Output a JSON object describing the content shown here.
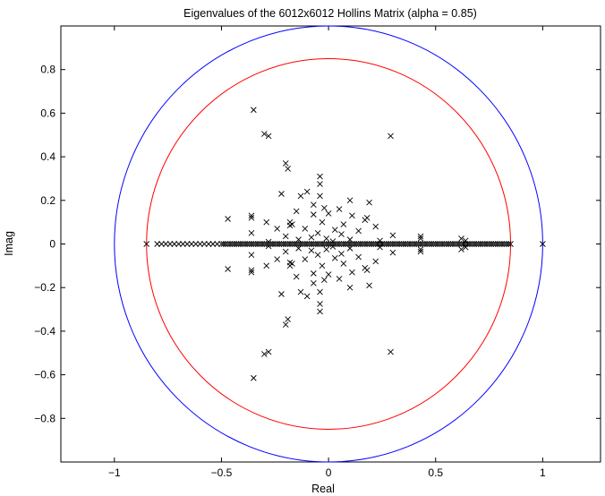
{
  "chart_data": {
    "type": "scatter",
    "title": "Eigenvalues of the 6012x6012 Hollins Matrix (alpha = 0.85)",
    "xlabel": "Real",
    "ylabel": "Imag",
    "xlim": [
      -1.25,
      1.27
    ],
    "ylim": [
      -1.0,
      1.0
    ],
    "xticks": [
      -1,
      -0.5,
      0,
      0.5,
      1
    ],
    "xtick_labels": [
      "−1",
      "−0.5",
      "0",
      "0.5",
      "1"
    ],
    "yticks": [
      -0.8,
      -0.6,
      -0.4,
      -0.2,
      0,
      0.2,
      0.4,
      0.6,
      0.8
    ],
    "ytick_labels": [
      "−0.8",
      "−0.6",
      "−0.4",
      "−0.2",
      "0",
      "0.2",
      "0.4",
      "0.6",
      "0.8"
    ],
    "grid": false,
    "marker": "x",
    "marker_color": "#000000",
    "circles": [
      {
        "radius": 1.0,
        "color": "#0000ff"
      },
      {
        "radius": 0.85,
        "color": "#ff0000"
      }
    ],
    "real_axis_eigenvalues_x": [
      -0.85,
      -0.8,
      -0.78,
      -0.76,
      -0.74,
      -0.72,
      -0.7,
      -0.68,
      -0.66,
      -0.64,
      -0.62,
      -0.6,
      -0.58,
      -0.56,
      -0.54,
      -0.52,
      -0.5,
      -0.49,
      -0.48,
      -0.47,
      -0.46,
      -0.45,
      -0.44,
      -0.43,
      -0.42,
      -0.41,
      -0.4,
      -0.39,
      -0.38,
      -0.37,
      -0.36,
      -0.35,
      -0.34,
      -0.33,
      -0.32,
      -0.31,
      -0.3,
      -0.29,
      -0.28,
      -0.27,
      -0.26,
      -0.25,
      -0.24,
      -0.23,
      -0.22,
      -0.21,
      -0.2,
      -0.19,
      -0.18,
      -0.17,
      -0.16,
      -0.15,
      -0.14,
      -0.13,
      -0.12,
      -0.11,
      -0.1,
      -0.09,
      -0.08,
      -0.07,
      -0.06,
      -0.05,
      -0.04,
      -0.03,
      -0.02,
      -0.01,
      0.0,
      0.01,
      0.02,
      0.03,
      0.04,
      0.05,
      0.06,
      0.07,
      0.08,
      0.09,
      0.1,
      0.11,
      0.12,
      0.13,
      0.14,
      0.15,
      0.16,
      0.17,
      0.18,
      0.19,
      0.2,
      0.21,
      0.22,
      0.23,
      0.24,
      0.25,
      0.26,
      0.27,
      0.28,
      0.29,
      0.3,
      0.31,
      0.32,
      0.33,
      0.34,
      0.35,
      0.36,
      0.37,
      0.38,
      0.39,
      0.4,
      0.41,
      0.42,
      0.43,
      0.44,
      0.45,
      0.46,
      0.47,
      0.48,
      0.49,
      0.5,
      0.51,
      0.52,
      0.53,
      0.54,
      0.55,
      0.56,
      0.57,
      0.58,
      0.59,
      0.6,
      0.61,
      0.62,
      0.63,
      0.64,
      0.65,
      0.66,
      0.67,
      0.68,
      0.69,
      0.7,
      0.71,
      0.72,
      0.73,
      0.74,
      0.75,
      0.76,
      0.77,
      0.78,
      0.79,
      0.8,
      0.81,
      0.82,
      0.83,
      0.84,
      0.85,
      1.0
    ],
    "complex_eigenvalues": [
      {
        "x": -0.35,
        "y": 0.615
      },
      {
        "x": -0.35,
        "y": -0.615
      },
      {
        "x": -0.3,
        "y": 0.505
      },
      {
        "x": -0.3,
        "y": -0.505
      },
      {
        "x": -0.28,
        "y": 0.495
      },
      {
        "x": -0.28,
        "y": -0.495
      },
      {
        "x": 0.29,
        "y": 0.495
      },
      {
        "x": 0.29,
        "y": -0.495
      },
      {
        "x": -0.2,
        "y": 0.37
      },
      {
        "x": -0.2,
        "y": -0.37
      },
      {
        "x": -0.19,
        "y": 0.345
      },
      {
        "x": -0.19,
        "y": -0.345
      },
      {
        "x": -0.04,
        "y": 0.31
      },
      {
        "x": -0.04,
        "y": -0.31
      },
      {
        "x": -0.04,
        "y": 0.275
      },
      {
        "x": -0.04,
        "y": -0.275
      },
      {
        "x": -0.1,
        "y": 0.24
      },
      {
        "x": -0.1,
        "y": -0.24
      },
      {
        "x": -0.22,
        "y": 0.23
      },
      {
        "x": -0.22,
        "y": -0.23
      },
      {
        "x": -0.13,
        "y": 0.22
      },
      {
        "x": -0.13,
        "y": -0.22
      },
      {
        "x": -0.04,
        "y": 0.22
      },
      {
        "x": -0.04,
        "y": -0.22
      },
      {
        "x": 0.1,
        "y": 0.2
      },
      {
        "x": 0.1,
        "y": -0.2
      },
      {
        "x": 0.19,
        "y": 0.19
      },
      {
        "x": 0.19,
        "y": -0.19
      },
      {
        "x": -0.07,
        "y": 0.18
      },
      {
        "x": -0.07,
        "y": -0.18
      },
      {
        "x": -0.02,
        "y": 0.165
      },
      {
        "x": -0.02,
        "y": -0.165
      },
      {
        "x": 0.05,
        "y": 0.16
      },
      {
        "x": 0.05,
        "y": -0.16
      },
      {
        "x": -0.15,
        "y": 0.15
      },
      {
        "x": -0.15,
        "y": -0.15
      },
      {
        "x": 0.0,
        "y": 0.14
      },
      {
        "x": 0.0,
        "y": -0.14
      },
      {
        "x": -0.07,
        "y": 0.135
      },
      {
        "x": -0.07,
        "y": -0.135
      },
      {
        "x": 0.11,
        "y": 0.13
      },
      {
        "x": 0.11,
        "y": -0.13
      },
      {
        "x": 0.18,
        "y": 0.12
      },
      {
        "x": 0.18,
        "y": -0.12
      },
      {
        "x": 0.17,
        "y": 0.11
      },
      {
        "x": 0.17,
        "y": -0.11
      },
      {
        "x": -0.36,
        "y": 0.12
      },
      {
        "x": -0.36,
        "y": -0.12
      },
      {
        "x": -0.47,
        "y": 0.115
      },
      {
        "x": -0.47,
        "y": -0.115
      },
      {
        "x": -0.36,
        "y": 0.13
      },
      {
        "x": -0.36,
        "y": -0.13
      },
      {
        "x": -0.29,
        "y": 0.1
      },
      {
        "x": -0.29,
        "y": -0.1
      },
      {
        "x": -0.18,
        "y": 0.1
      },
      {
        "x": -0.18,
        "y": -0.1
      },
      {
        "x": -0.17,
        "y": 0.09
      },
      {
        "x": -0.17,
        "y": -0.09
      },
      {
        "x": -0.18,
        "y": 0.085
      },
      {
        "x": -0.18,
        "y": -0.085
      },
      {
        "x": -0.03,
        "y": 0.1
      },
      {
        "x": -0.03,
        "y": -0.1
      },
      {
        "x": 0.07,
        "y": 0.09
      },
      {
        "x": 0.07,
        "y": -0.09
      },
      {
        "x": 0.22,
        "y": 0.08
      },
      {
        "x": 0.22,
        "y": -0.08
      },
      {
        "x": -0.24,
        "y": 0.07
      },
      {
        "x": -0.24,
        "y": -0.07
      },
      {
        "x": -0.11,
        "y": 0.07
      },
      {
        "x": -0.11,
        "y": -0.07
      },
      {
        "x": 0.03,
        "y": 0.065
      },
      {
        "x": 0.03,
        "y": -0.065
      },
      {
        "x": 0.14,
        "y": 0.06
      },
      {
        "x": 0.14,
        "y": -0.06
      },
      {
        "x": -0.36,
        "y": 0.05
      },
      {
        "x": -0.36,
        "y": -0.05
      },
      {
        "x": -0.05,
        "y": 0.05
      },
      {
        "x": -0.05,
        "y": -0.05
      },
      {
        "x": 0.06,
        "y": 0.045
      },
      {
        "x": 0.06,
        "y": -0.045
      },
      {
        "x": 0.3,
        "y": 0.04
      },
      {
        "x": 0.3,
        "y": -0.04
      },
      {
        "x": -0.2,
        "y": 0.035
      },
      {
        "x": -0.2,
        "y": -0.035
      },
      {
        "x": -0.08,
        "y": 0.03
      },
      {
        "x": -0.08,
        "y": -0.03
      },
      {
        "x": 0.43,
        "y": 0.035
      },
      {
        "x": 0.43,
        "y": -0.035
      },
      {
        "x": 0.43,
        "y": 0.025
      },
      {
        "x": 0.43,
        "y": -0.025
      },
      {
        "x": 0.62,
        "y": 0.025
      },
      {
        "x": 0.62,
        "y": -0.025
      },
      {
        "x": 0.64,
        "y": 0.015
      },
      {
        "x": 0.64,
        "y": -0.015
      },
      {
        "x": -0.01,
        "y": 0.025
      },
      {
        "x": -0.01,
        "y": -0.025
      },
      {
        "x": 0.1,
        "y": 0.02
      },
      {
        "x": 0.1,
        "y": -0.02
      },
      {
        "x": -0.14,
        "y": 0.02
      },
      {
        "x": -0.14,
        "y": -0.02
      },
      {
        "x": 0.24,
        "y": 0.015
      },
      {
        "x": 0.24,
        "y": -0.015
      },
      {
        "x": -0.28,
        "y": 0.01
      },
      {
        "x": -0.28,
        "y": -0.01
      },
      {
        "x": 0.02,
        "y": 0.012
      },
      {
        "x": 0.02,
        "y": -0.012
      }
    ]
  }
}
